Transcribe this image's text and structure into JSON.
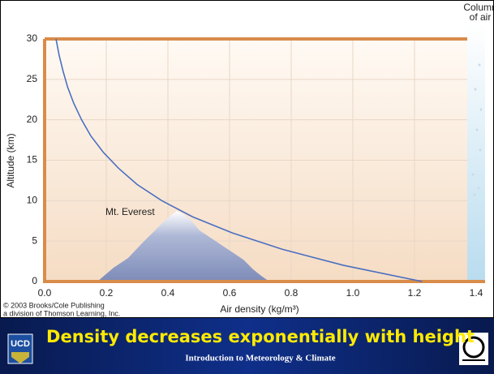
{
  "chart_data": {
    "type": "line",
    "x_label": "Air density (kg/m³)",
    "y_label": "Altitude (km)",
    "annotation": "Mt. Everest",
    "column_label": [
      "Column",
      "of air"
    ],
    "credit": [
      "© 2003 Brooks/Cole Publishing",
      "a division of Thomson Learning, Inc."
    ],
    "x": [
      1.225,
      0.97,
      0.77,
      0.61,
      0.48,
      0.38,
      0.3,
      0.24,
      0.19,
      0.15,
      0.12,
      0.095,
      0.075,
      0.06,
      0.047,
      0.037
    ],
    "series": [
      {
        "color": "#4a6fc0",
        "values": [
          0,
          2,
          4,
          6,
          8,
          10,
          12,
          14,
          16,
          18,
          20,
          22,
          24,
          26,
          28,
          30
        ]
      }
    ],
    "xlim": [
      0,
      1.4
    ],
    "ylim": [
      0,
      30
    ],
    "xticks": [
      {
        "value": 0,
        "label": "0.0"
      },
      0.2,
      0.4,
      0.6,
      0.8,
      {
        "value": 1,
        "label": "1.0"
      },
      1.2,
      1.4
    ],
    "yticks": [
      0,
      5,
      10,
      15,
      20,
      25,
      30
    ],
    "grid": true
  },
  "footer": {
    "title": "Density decreases exponentially with height",
    "subtitle": "Introduction to Meteorology & Climate",
    "logo_text": "UCD"
  }
}
